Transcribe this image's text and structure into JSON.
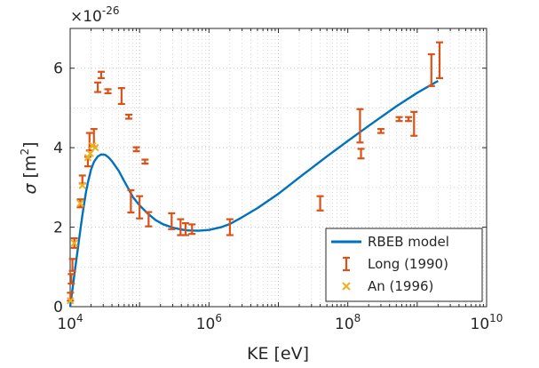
{
  "chart_data": {
    "type": "scatter",
    "title": "",
    "xlabel": "KE [eV]",
    "ylabel_symbol": "σ",
    "ylabel_unit_open": "[m",
    "ylabel_unit_exp": "2",
    "ylabel_unit_close": "]",
    "xscale": "log",
    "xlim": [
      10000,
      10000000000
    ],
    "ylim": [
      0,
      7
    ],
    "y_multiplier_base": "×10",
    "y_multiplier_exp": "-26",
    "x_ticks": [
      {
        "value": 10000,
        "base": "10",
        "exp": "4"
      },
      {
        "value": 1000000,
        "base": "10",
        "exp": "6"
      },
      {
        "value": 100000000,
        "base": "10",
        "exp": "8"
      },
      {
        "value": 10000000000,
        "base": "10",
        "exp": "10"
      }
    ],
    "y_ticks": [
      {
        "value": 0,
        "label": "0"
      },
      {
        "value": 2,
        "label": "2"
      },
      {
        "value": 4,
        "label": "4"
      },
      {
        "value": 6,
        "label": "6"
      }
    ],
    "grid": "on, dotted, major and minor on x",
    "legend_position": "bottom-right",
    "colors": {
      "model": "#0072bd",
      "long": "#d95319",
      "an": "#edb120",
      "axes": "#262626",
      "grid": "#bfbfbf"
    },
    "series": [
      {
        "name": "RBEB model",
        "kind": "line",
        "points": [
          [
            10000,
            0
          ],
          [
            10500,
            0.28
          ],
          [
            11000,
            0.55
          ],
          [
            12000,
            1.05
          ],
          [
            13000,
            1.5
          ],
          [
            14000,
            1.92
          ],
          [
            15000,
            2.3
          ],
          [
            16000,
            2.62
          ],
          [
            17000,
            2.9
          ],
          [
            18000,
            3.12
          ],
          [
            20000,
            3.45
          ],
          [
            22000,
            3.64
          ],
          [
            25000,
            3.78
          ],
          [
            28000,
            3.83
          ],
          [
            32000,
            3.82
          ],
          [
            36000,
            3.75
          ],
          [
            40000,
            3.66
          ],
          [
            50000,
            3.42
          ],
          [
            60000,
            3.16
          ],
          [
            70000,
            2.95
          ],
          [
            80000,
            2.76
          ],
          [
            100000,
            2.55
          ],
          [
            130000,
            2.35
          ],
          [
            170000,
            2.18
          ],
          [
            220000,
            2.07
          ],
          [
            300000,
            1.99
          ],
          [
            400000,
            1.94
          ],
          [
            500000,
            1.92
          ],
          [
            700000,
            1.91
          ],
          [
            1000000,
            1.93
          ],
          [
            1500000,
            2.0
          ],
          [
            2000000,
            2.08
          ],
          [
            3000000,
            2.25
          ],
          [
            5000000,
            2.48
          ],
          [
            10000000,
            2.84
          ],
          [
            20000000,
            3.25
          ],
          [
            50000000,
            3.78
          ],
          [
            100000000,
            4.17
          ],
          [
            200000000,
            4.55
          ],
          [
            500000000,
            5.04
          ],
          [
            1000000000,
            5.38
          ],
          [
            2000000000,
            5.68
          ]
        ]
      },
      {
        "name": "Long (1990)",
        "kind": "errorbar",
        "points": [
          {
            "x": 10100,
            "y": 0.25,
            "err": 0.1
          },
          {
            "x": 10400,
            "y": 0.7,
            "err": 0.12
          },
          {
            "x": 10800,
            "y": 1.05,
            "err": 0.15
          },
          {
            "x": 11500,
            "y": 1.6,
            "err": 0.12
          },
          {
            "x": 14000,
            "y": 2.6,
            "err": 0.1
          },
          {
            "x": 15000,
            "y": 3.2,
            "err": 0.1
          },
          {
            "x": 18000,
            "y": 3.65,
            "err": 0.12
          },
          {
            "x": 19000,
            "y": 4.15,
            "err": 0.22
          },
          {
            "x": 22000,
            "y": 4.25,
            "err": 0.22
          },
          {
            "x": 25000,
            "y": 5.52,
            "err": 0.12
          },
          {
            "x": 28000,
            "y": 5.83,
            "err": 0.08
          },
          {
            "x": 35000,
            "y": 5.42,
            "err": 0.05
          },
          {
            "x": 55000,
            "y": 5.3,
            "err": 0.2
          },
          {
            "x": 70000,
            "y": 4.78,
            "err": 0.05
          },
          {
            "x": 75000,
            "y": 2.65,
            "err": 0.28
          },
          {
            "x": 90000,
            "y": 3.96,
            "err": 0.05
          },
          {
            "x": 100000,
            "y": 2.5,
            "err": 0.28
          },
          {
            "x": 120000,
            "y": 3.65,
            "err": 0.05
          },
          {
            "x": 135000,
            "y": 2.2,
            "err": 0.18
          },
          {
            "x": 290000,
            "y": 2.15,
            "err": 0.2
          },
          {
            "x": 390000,
            "y": 2.0,
            "err": 0.2
          },
          {
            "x": 460000,
            "y": 1.95,
            "err": 0.15
          },
          {
            "x": 570000,
            "y": 1.95,
            "err": 0.12
          },
          {
            "x": 2000000,
            "y": 2.0,
            "err": 0.2
          },
          {
            "x": 40000000,
            "y": 2.6,
            "err": 0.18
          },
          {
            "x": 150000000,
            "y": 4.55,
            "err": 0.42
          },
          {
            "x": 155000000,
            "y": 3.85,
            "err": 0.12
          },
          {
            "x": 300000000,
            "y": 4.42,
            "err": 0.05
          },
          {
            "x": 550000000,
            "y": 4.72,
            "err": 0.05
          },
          {
            "x": 750000000,
            "y": 4.72,
            "err": 0.05
          },
          {
            "x": 900000000,
            "y": 4.6,
            "err": 0.3
          },
          {
            "x": 1600000000,
            "y": 5.95,
            "err": 0.4
          },
          {
            "x": 2100000000,
            "y": 6.2,
            "err": 0.45
          }
        ]
      },
      {
        "name": "An (1996)",
        "kind": "marker",
        "points": [
          [
            10100,
            0.15
          ],
          [
            11500,
            1.6
          ],
          [
            14000,
            2.6
          ],
          [
            15000,
            3.05
          ],
          [
            18000,
            3.75
          ],
          [
            19500,
            3.85
          ],
          [
            21000,
            4.05
          ],
          [
            23000,
            4.0
          ]
        ]
      }
    ]
  }
}
